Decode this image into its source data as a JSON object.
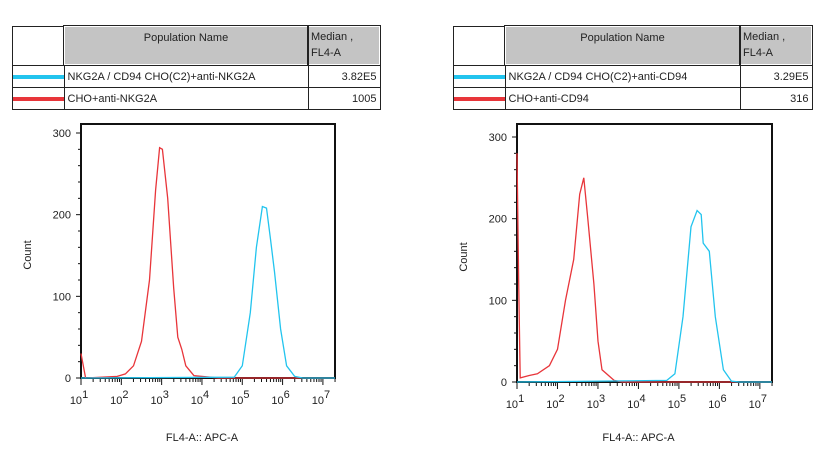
{
  "tables": [
    {
      "header": {
        "name": "Population Name",
        "median_line1": "Median ,",
        "median_line2": "FL4-A"
      },
      "rows": [
        {
          "name": "NKG2A / CD94 CHO(C2)+anti-NKG2A",
          "median": "3.82E5",
          "color": "#22c4ee"
        },
        {
          "name": "CHO+anti-NKG2A",
          "median": "1005",
          "color": "#e8353a"
        }
      ]
    },
    {
      "header": {
        "name": "Population Name",
        "median_line1": "Median ,",
        "median_line2": "FL4-A"
      },
      "rows": [
        {
          "name": "NKG2A / CD94 CHO(C2)+anti-CD94",
          "median": "3.29E5",
          "color": "#22c4ee"
        },
        {
          "name": "CHO+anti-CD94",
          "median": "316",
          "color": "#e8353a"
        }
      ]
    }
  ],
  "chart_data": [
    {
      "type": "line",
      "xscale": "log",
      "xlabel": "FL4-A:: APC-A",
      "ylabel": "Count",
      "ylim": [
        0,
        300
      ],
      "xlim": [
        10,
        20000000
      ],
      "yticks": [
        "0",
        "100",
        "200",
        "300"
      ],
      "xticks": [
        "1",
        "2",
        "3",
        "4",
        "5",
        "6",
        "7"
      ],
      "xtick_base": "10",
      "series": [
        {
          "name": "CHO+anti-NKG2A",
          "color": "#e8353a",
          "points": [
            [
              10,
              30
            ],
            [
              13,
              0
            ],
            [
              79,
              2
            ],
            [
              126,
              5
            ],
            [
              200,
              15
            ],
            [
              316,
              45
            ],
            [
              501,
              120
            ],
            [
              708,
              230
            ],
            [
              891,
              282
            ],
            [
              1047,
              280
            ],
            [
              1413,
              220
            ],
            [
              1995,
              110
            ],
            [
              2512,
              50
            ],
            [
              3162,
              35
            ],
            [
              3981,
              15
            ],
            [
              6310,
              3
            ],
            [
              15849,
              1
            ],
            [
              25119,
              0
            ],
            [
              20000000,
              0
            ]
          ]
        },
        {
          "name": "NKG2A / CD94 CHO(C2)+anti-NKG2A",
          "color": "#22c4ee",
          "points": [
            [
              10,
              0
            ],
            [
              63096,
              1
            ],
            [
              100000,
              15
            ],
            [
              158489,
              80
            ],
            [
              223872,
              160
            ],
            [
              316228,
              210
            ],
            [
              398107,
              208
            ],
            [
              501187,
              170
            ],
            [
              630957,
              130
            ],
            [
              891251,
              60
            ],
            [
              1258925,
              15
            ],
            [
              1995262,
              2
            ],
            [
              3162278,
              0
            ],
            [
              20000000,
              0
            ]
          ]
        }
      ]
    },
    {
      "type": "line",
      "xscale": "log",
      "xlabel": "FL4-A:: APC-A",
      "ylabel": "Count",
      "ylim": [
        0,
        300
      ],
      "xlim": [
        10,
        20000000
      ],
      "yticks": [
        "0",
        "100",
        "200",
        "300"
      ],
      "xticks": [
        "1",
        "2",
        "3",
        "4",
        "5",
        "6",
        "7"
      ],
      "xtick_base": "10",
      "series": [
        {
          "name": "CHO+anti-CD94",
          "color": "#e8353a",
          "points": [
            [
              10,
              280
            ],
            [
              11,
              120
            ],
            [
              12,
              5
            ],
            [
              20,
              8
            ],
            [
              32,
              10
            ],
            [
              63,
              20
            ],
            [
              100,
              40
            ],
            [
              158,
              100
            ],
            [
              251,
              150
            ],
            [
              355,
              230
            ],
            [
              447,
              250
            ],
            [
              562,
              200
            ],
            [
              794,
              120
            ],
            [
              1000,
              50
            ],
            [
              1259,
              15
            ],
            [
              2512,
              2
            ],
            [
              3981,
              0
            ],
            [
              20000000,
              0
            ]
          ]
        },
        {
          "name": "NKG2A / CD94 CHO(C2)+anti-CD94",
          "color": "#22c4ee",
          "points": [
            [
              10,
              0
            ],
            [
              50119,
              2
            ],
            [
              79433,
              10
            ],
            [
              125893,
              80
            ],
            [
              199526,
              190
            ],
            [
              281838,
              210
            ],
            [
              354813,
              205
            ],
            [
              398107,
              170
            ],
            [
              562341,
              160
            ],
            [
              794328,
              80
            ],
            [
              1258925,
              15
            ],
            [
              1995262,
              1
            ],
            [
              3162278,
              0
            ],
            [
              20000000,
              0
            ]
          ]
        }
      ]
    }
  ]
}
